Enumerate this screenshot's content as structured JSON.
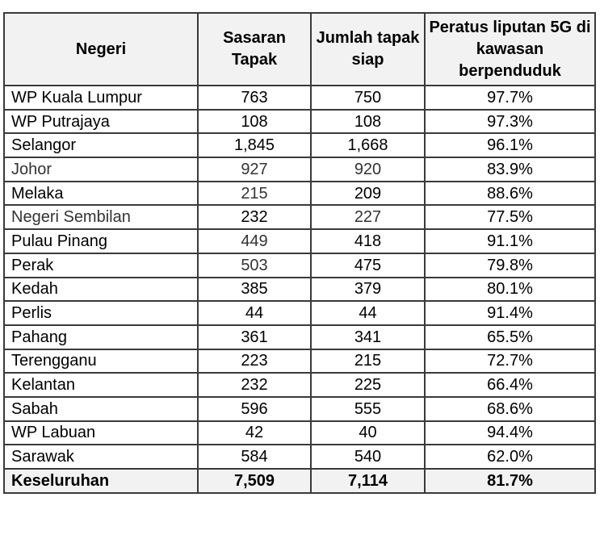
{
  "table": {
    "headers": {
      "state": "Negeri",
      "target_sites": "Sasaran Tapak",
      "ready_sites": "Jumlah tapak siap",
      "coverage_pct": "Peratus liputan 5G di kawasan berpenduduk"
    },
    "rows": [
      {
        "state": "WP Kuala Lumpur",
        "target": "763",
        "ready": "750",
        "pct": "97.7%"
      },
      {
        "state": "WP Putrajaya",
        "target": "108",
        "ready": "108",
        "pct": "97.3%"
      },
      {
        "state": "Selangor",
        "target": "1,845",
        "ready": "1,668",
        "pct": "96.1%"
      },
      {
        "state": "Johor",
        "target": "927",
        "ready": "920",
        "pct": "83.9%"
      },
      {
        "state": "Melaka",
        "target": "215",
        "ready": "209",
        "pct": "88.6%"
      },
      {
        "state": "Negeri Sembilan",
        "target": "232",
        "ready": "227",
        "pct": "77.5%"
      },
      {
        "state": "Pulau Pinang",
        "target": "449",
        "ready": "418",
        "pct": "91.1%"
      },
      {
        "state": "Perak",
        "target": "503",
        "ready": "475",
        "pct": "79.8%"
      },
      {
        "state": "Kedah",
        "target": "385",
        "ready": "379",
        "pct": "80.1%"
      },
      {
        "state": "Perlis",
        "target": "44",
        "ready": "44",
        "pct": "91.4%"
      },
      {
        "state": "Pahang",
        "target": "361",
        "ready": "341",
        "pct": "65.5%"
      },
      {
        "state": "Terengganu",
        "target": "223",
        "ready": "215",
        "pct": "72.7%"
      },
      {
        "state": "Kelantan",
        "target": "232",
        "ready": "225",
        "pct": "66.4%"
      },
      {
        "state": "Sabah",
        "target": "596",
        "ready": "555",
        "pct": "68.6%"
      },
      {
        "state": "WP Labuan",
        "target": "42",
        "ready": "40",
        "pct": "94.4%"
      },
      {
        "state": "Sarawak",
        "target": "584",
        "ready": "540",
        "pct": "62.0%"
      }
    ],
    "total": {
      "state": "Keseluruhan",
      "target": "7,509",
      "ready": "7,114",
      "pct": "81.7%"
    }
  },
  "colors": {
    "border": "#3a3a3a",
    "header_bg": "#f2f2f2",
    "total_bg": "#f2f2f2"
  }
}
